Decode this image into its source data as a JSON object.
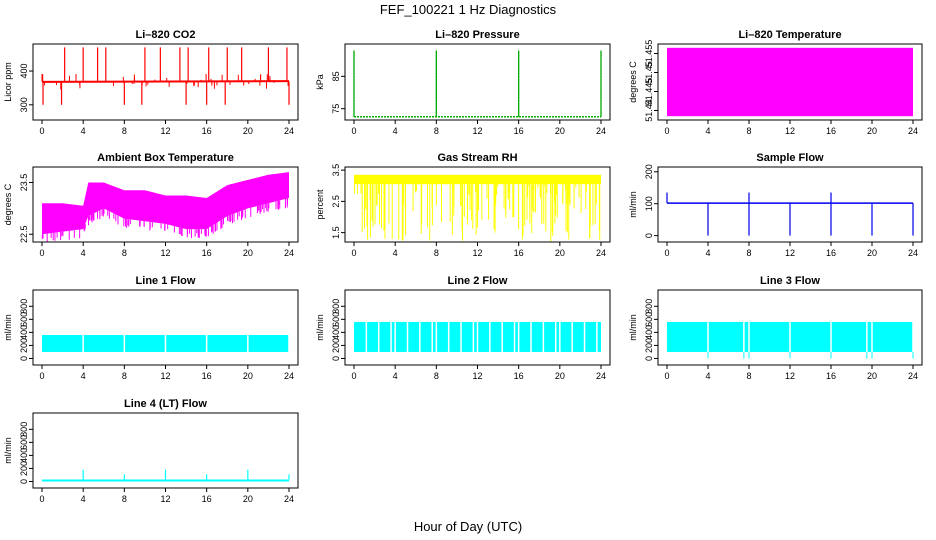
{
  "figure": {
    "title": "FEF_100221  1 Hz Diagnostics",
    "xlabel": "Hour of Day (UTC)"
  },
  "chart_data": [
    {
      "type": "line",
      "title": "Li–820 CO2",
      "ylabel": "Licor ppm",
      "color": "#ff0000",
      "xlim": [
        0,
        24
      ],
      "xticks": [
        0,
        4,
        8,
        12,
        16,
        20,
        24
      ],
      "ylim": [
        255,
        480
      ],
      "yticks": [
        300,
        400
      ],
      "series": [
        {
          "values_description": "baseline",
          "x": [
            0,
            24
          ],
          "y": [
            368,
            370
          ]
        }
      ],
      "spikes_up_x": [
        2.2,
        4,
        5.4,
        6.2,
        10,
        11.5,
        13.4,
        14.2,
        16.2,
        18,
        19.4,
        22,
        23.8
      ],
      "spike_up_y": 470,
      "dips_x": [
        0.1,
        1.9,
        8,
        9.7,
        14,
        16,
        17.8,
        24
      ],
      "dip_y": 300
    },
    {
      "type": "line",
      "title": "Li–820 Pressure",
      "ylabel": "kPa",
      "color": "#00aa00",
      "xlim": [
        0,
        24
      ],
      "xticks": [
        0,
        4,
        8,
        12,
        16,
        20,
        24
      ],
      "ylim": [
        71.5,
        95
      ],
      "yticks": [
        75,
        85
      ],
      "baseline": 72.5,
      "spikes_x": [
        0,
        8,
        16,
        24
      ],
      "spike_y": 93
    },
    {
      "type": "area",
      "title": "Li–820 Temperature",
      "ylabel": "degrees C",
      "color": "#ff00ff",
      "xlim": [
        0,
        24
      ],
      "xticks": [
        0,
        4,
        8,
        12,
        16,
        20,
        24
      ],
      "ylim": [
        51.4375,
        51.4575
      ],
      "yticks": [
        51.44,
        51.445,
        51.45,
        51.455
      ],
      "band": [
        51.4385,
        51.4565
      ]
    },
    {
      "type": "area",
      "title": "Ambient Box Temperature",
      "ylabel": "degrees C",
      "color": "#ff00ff",
      "xlim": [
        0,
        24
      ],
      "xticks": [
        0,
        4,
        8,
        12,
        16,
        20,
        24
      ],
      "ylim": [
        22.35,
        23.8
      ],
      "yticks": [
        22.5,
        23.5
      ],
      "x": [
        0,
        2,
        4,
        4.5,
        6,
        8,
        10,
        12,
        14,
        16,
        18,
        20,
        22,
        24
      ],
      "low": [
        22.5,
        22.55,
        22.6,
        22.85,
        23.0,
        22.8,
        22.75,
        22.7,
        22.6,
        22.6,
        22.85,
        23.0,
        23.1,
        23.2
      ],
      "high": [
        23.1,
        23.1,
        23.05,
        23.5,
        23.5,
        23.35,
        23.35,
        23.25,
        23.25,
        23.2,
        23.45,
        23.55,
        23.65,
        23.7
      ]
    },
    {
      "type": "area",
      "title": "Gas Stream RH",
      "ylabel": "percent",
      "color": "#ffff00",
      "xlim": [
        0,
        24
      ],
      "xticks": [
        0,
        4,
        8,
        12,
        16,
        20,
        24
      ],
      "ylim": [
        1.2,
        3.6
      ],
      "yticks": [
        1.5,
        2.5,
        3.5
      ],
      "band": [
        3.05,
        3.35
      ],
      "drop_to": 1.2
    },
    {
      "type": "line",
      "title": "Sample Flow",
      "ylabel": "ml/min",
      "color": "#0000ee",
      "xlim": [
        0,
        24
      ],
      "xticks": [
        0,
        4,
        8,
        12,
        16,
        20,
        24
      ],
      "ylim": [
        -20,
        215
      ],
      "yticks": [
        0,
        100,
        200
      ],
      "baseline": 102,
      "spike_x": [
        0,
        8,
        16
      ],
      "spike_y": 135,
      "dips_x": [
        4,
        8,
        12,
        16,
        20,
        24
      ],
      "dip_y": 0
    },
    {
      "type": "area",
      "title": "Line 1 Flow",
      "ylabel": "ml/min",
      "color": "#00ffff",
      "xlim": [
        0,
        24
      ],
      "xticks": [
        0,
        4,
        8,
        12,
        16,
        20,
        24
      ],
      "ylim": [
        -100,
        1050
      ],
      "yticks": [
        0,
        200,
        400,
        600,
        800
      ],
      "band": [
        100,
        360
      ],
      "gaps_x": [
        4,
        8,
        12,
        16,
        20,
        24
      ]
    },
    {
      "type": "area",
      "title": "Line 2 Flow",
      "ylabel": "ml/min",
      "color": "#00ffff",
      "xlim": [
        0,
        24
      ],
      "xticks": [
        0,
        4,
        8,
        12,
        16,
        20,
        24
      ],
      "ylim": [
        -100,
        1050
      ],
      "yticks": [
        0,
        200,
        400,
        600,
        800
      ],
      "band": [
        100,
        560
      ],
      "gaps_x": [
        1.2,
        2.4,
        3.6,
        4,
        5.2,
        6.4,
        7.6,
        8,
        9.2,
        10.4,
        11.6,
        12,
        13.2,
        14.4,
        15.6,
        16,
        17.2,
        18.4,
        19.6,
        20,
        21.2,
        22.4,
        23.6
      ]
    },
    {
      "type": "area",
      "title": "Line 3 Flow",
      "ylabel": "ml/min",
      "color": "#00ffff",
      "xlim": [
        0,
        24
      ],
      "xticks": [
        0,
        4,
        8,
        12,
        16,
        20,
        24
      ],
      "ylim": [
        -100,
        1050
      ],
      "yticks": [
        0,
        200,
        400,
        600,
        800
      ],
      "band": [
        100,
        560
      ],
      "gaps_x": [
        4,
        7.5,
        8,
        12,
        16,
        19.5,
        20,
        24
      ]
    },
    {
      "type": "area",
      "title": "Line 4 (LT) Flow",
      "ylabel": "ml/min",
      "color": "#00ffff",
      "xlim": [
        0,
        24
      ],
      "xticks": [
        0,
        4,
        8,
        12,
        16,
        20,
        24
      ],
      "ylim": [
        -100,
        1050
      ],
      "yticks": [
        0,
        200,
        400,
        600,
        800
      ],
      "band": [
        0,
        30
      ],
      "spikes_x": [
        4,
        8,
        12,
        16,
        20,
        24
      ],
      "spike_y": [
        180,
        110,
        180,
        110,
        180,
        110
      ]
    }
  ]
}
